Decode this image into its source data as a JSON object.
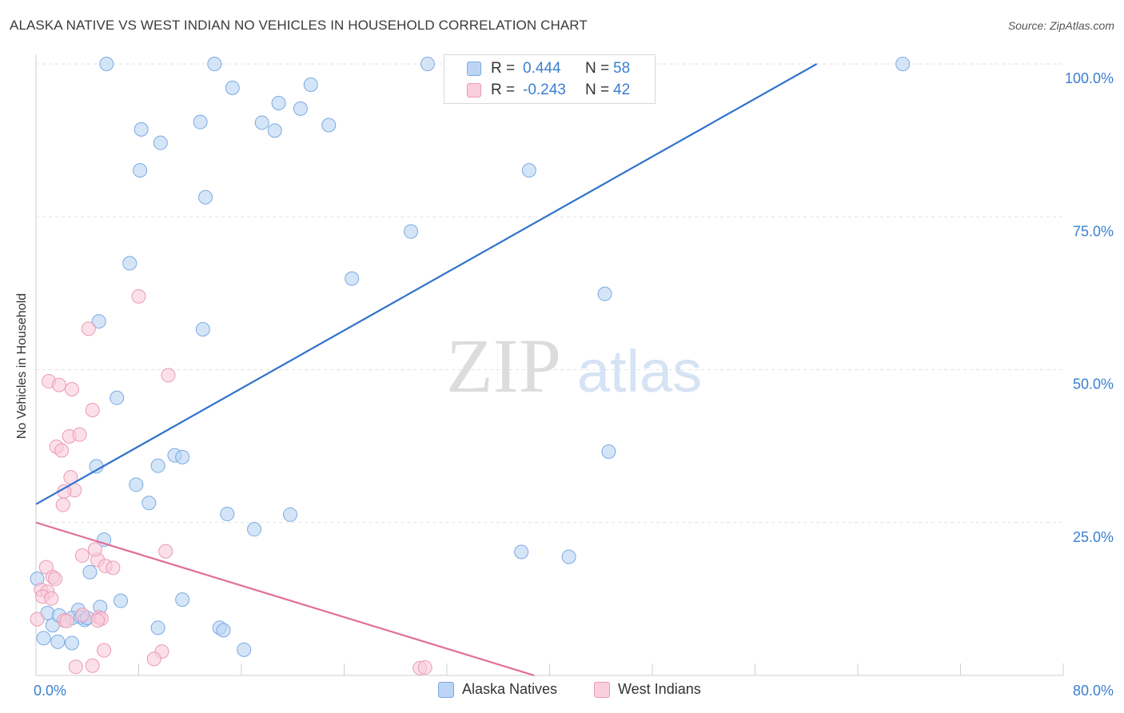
{
  "title": "ALASKA NATIVE VS WEST INDIAN NO VEHICLES IN HOUSEHOLD CORRELATION CHART",
  "source": "Source: ZipAtlas.com",
  "watermark": {
    "zip": "ZIP",
    "atlas": "atlas"
  },
  "legend": {
    "rows": [
      {
        "r_label": "R =",
        "r_value": "0.444",
        "n_label": "N =",
        "n_value": "58",
        "color": "#a8c8f0"
      },
      {
        "r_label": "R =",
        "r_value": "-0.243",
        "n_label": "N =",
        "n_value": "42",
        "color": "#f5b8cb"
      }
    ]
  },
  "bottom_legend": {
    "series1": "Alaska Natives",
    "series2": "West Indians"
  },
  "chart_data": {
    "type": "scatter",
    "title": "ALASKA NATIVE VS WEST INDIAN NO VEHICLES IN HOUSEHOLD CORRELATION CHART",
    "xlabel": "",
    "ylabel": "No Vehicles in Household",
    "xlim": [
      0,
      80
    ],
    "ylim": [
      0,
      100
    ],
    "x_tick_labels": {
      "left": "0.0%",
      "right": "80.0%"
    },
    "y_tick_labels": [
      "100.0%",
      "75.0%",
      "50.0%",
      "25.0%"
    ],
    "y_ticks": [
      100,
      75,
      50,
      25
    ],
    "grid": true,
    "series": [
      {
        "name": "Alaska Natives",
        "color": "#7aaae3",
        "fill": "#b9d3f3",
        "trend": {
          "x": [
            0,
            60.8
          ],
          "y": [
            28.0,
            100.0
          ],
          "color": "#2f72cc"
        },
        "points": [
          [
            5.5,
            100
          ],
          [
            13.9,
            100
          ],
          [
            30.5,
            100
          ],
          [
            32.8,
            100
          ],
          [
            67.5,
            100
          ],
          [
            15.3,
            96.1
          ],
          [
            21.4,
            96.6
          ],
          [
            18.9,
            93.6
          ],
          [
            20.6,
            92.7
          ],
          [
            8.2,
            89.3
          ],
          [
            12.8,
            90.5
          ],
          [
            17.6,
            90.4
          ],
          [
            18.6,
            89.1
          ],
          [
            22.8,
            90.0
          ],
          [
            9.7,
            87.1
          ],
          [
            8.1,
            82.6
          ],
          [
            38.4,
            82.6
          ],
          [
            13.2,
            78.2
          ],
          [
            29.2,
            72.6
          ],
          [
            7.3,
            67.4
          ],
          [
            24.6,
            64.9
          ],
          [
            44.3,
            62.4
          ],
          [
            4.9,
            57.9
          ],
          [
            13.0,
            56.6
          ],
          [
            6.3,
            45.4
          ],
          [
            4.7,
            34.2
          ],
          [
            9.5,
            34.3
          ],
          [
            10.8,
            36.0
          ],
          [
            11.4,
            35.7
          ],
          [
            44.6,
            36.6
          ],
          [
            7.8,
            31.2
          ],
          [
            8.8,
            28.2
          ],
          [
            14.9,
            26.4
          ],
          [
            19.8,
            26.3
          ],
          [
            17.0,
            23.9
          ],
          [
            5.3,
            22.2
          ],
          [
            37.8,
            20.2
          ],
          [
            41.5,
            19.4
          ],
          [
            4.2,
            16.9
          ],
          [
            0.1,
            15.8
          ],
          [
            0.9,
            10.2
          ],
          [
            3.3,
            10.7
          ],
          [
            5.0,
            11.2
          ],
          [
            1.3,
            8.2
          ],
          [
            1.8,
            9.8
          ],
          [
            2.8,
            9.4
          ],
          [
            3.5,
            9.5
          ],
          [
            3.8,
            9.1
          ],
          [
            4.0,
            9.4
          ],
          [
            9.5,
            7.8
          ],
          [
            11.4,
            12.4
          ],
          [
            14.3,
            7.8
          ],
          [
            14.6,
            7.4
          ],
          [
            16.2,
            4.2
          ],
          [
            0.6,
            6.1
          ],
          [
            1.7,
            5.5
          ],
          [
            2.8,
            5.3
          ],
          [
            6.6,
            12.2
          ]
        ]
      },
      {
        "name": "West Indians",
        "color": "#eb9ab5",
        "fill": "#f8ccdb",
        "trend": {
          "x": [
            0,
            38.8
          ],
          "y": [
            25.0,
            0.0
          ],
          "color": "#e06f98"
        },
        "points": [
          [
            8.0,
            62.0
          ],
          [
            4.1,
            56.7
          ],
          [
            10.3,
            49.1
          ],
          [
            1.0,
            48.1
          ],
          [
            1.8,
            47.5
          ],
          [
            2.8,
            46.8
          ],
          [
            4.4,
            43.4
          ],
          [
            1.6,
            37.4
          ],
          [
            2.0,
            36.8
          ],
          [
            2.6,
            39.1
          ],
          [
            3.4,
            39.4
          ],
          [
            2.7,
            32.4
          ],
          [
            3.0,
            30.3
          ],
          [
            2.2,
            30.1
          ],
          [
            2.1,
            27.9
          ],
          [
            10.1,
            20.3
          ],
          [
            3.6,
            19.6
          ],
          [
            4.8,
            18.9
          ],
          [
            4.6,
            20.6
          ],
          [
            5.4,
            17.9
          ],
          [
            6.0,
            17.6
          ],
          [
            0.8,
            17.7
          ],
          [
            1.3,
            16.1
          ],
          [
            1.5,
            15.8
          ],
          [
            0.4,
            14.0
          ],
          [
            0.9,
            13.7
          ],
          [
            0.5,
            12.9
          ],
          [
            1.2,
            12.6
          ],
          [
            0.1,
            9.2
          ],
          [
            2.2,
            9.0
          ],
          [
            2.4,
            8.9
          ],
          [
            4.9,
            9.5
          ],
          [
            5.1,
            9.3
          ],
          [
            3.6,
            9.9
          ],
          [
            4.8,
            9.0
          ],
          [
            5.3,
            4.1
          ],
          [
            9.8,
            3.9
          ],
          [
            9.2,
            2.7
          ],
          [
            3.1,
            1.4
          ],
          [
            4.4,
            1.6
          ],
          [
            29.9,
            1.2
          ],
          [
            30.3,
            1.3
          ]
        ]
      }
    ]
  }
}
